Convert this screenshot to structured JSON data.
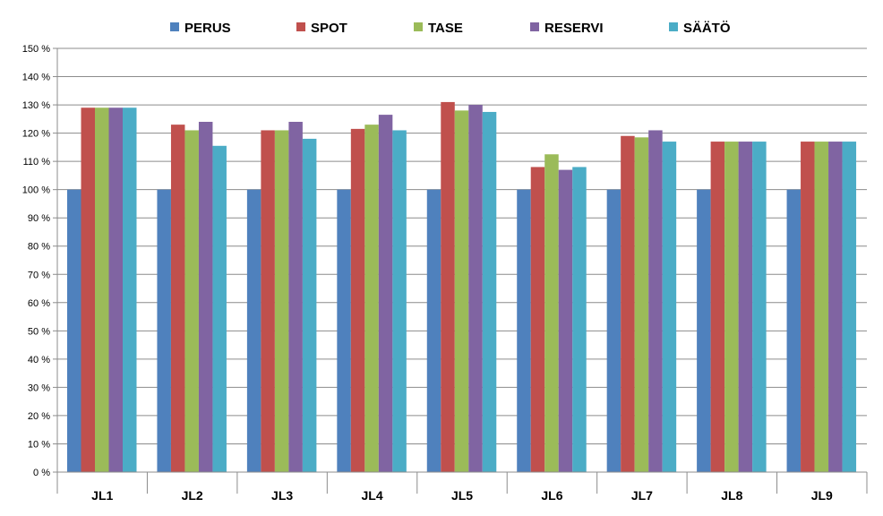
{
  "chart_data": {
    "type": "bar",
    "title": "",
    "xlabel": "",
    "ylabel": "",
    "categories": [
      "JL1",
      "JL2",
      "JL3",
      "JL4",
      "JL5",
      "JL6",
      "JL7",
      "JL8",
      "JL9"
    ],
    "series": [
      {
        "name": "PERUS",
        "color": "#4F81BD",
        "values": [
          100,
          100,
          100,
          100,
          100,
          100,
          100,
          100,
          100
        ]
      },
      {
        "name": "SPOT",
        "color": "#C0504D",
        "values": [
          129,
          123,
          121,
          121.5,
          131,
          108,
          119,
          117,
          117
        ]
      },
      {
        "name": "TASE",
        "color": "#9BBB59",
        "values": [
          129,
          121,
          121,
          123,
          128,
          112.5,
          118.5,
          117,
          117
        ]
      },
      {
        "name": "RESERVI",
        "color": "#8064A2",
        "values": [
          129,
          124,
          124,
          126.5,
          130,
          107,
          121,
          117,
          117
        ]
      },
      {
        "name": "SÄÄTÖ",
        "color": "#4BACC6",
        "values": [
          129,
          115.5,
          118,
          121,
          127.5,
          108,
          117,
          117,
          117
        ]
      }
    ],
    "ylim": [
      0,
      150
    ],
    "y_ticks": [
      {
        "v": 0,
        "label": "0 %"
      },
      {
        "v": 10,
        "label": "10 %"
      },
      {
        "v": 20,
        "label": "20 %"
      },
      {
        "v": 30,
        "label": "30 %"
      },
      {
        "v": 40,
        "label": "40 %"
      },
      {
        "v": 50,
        "label": "50 %"
      },
      {
        "v": 60,
        "label": "60 %"
      },
      {
        "v": 70,
        "label": "70 %"
      },
      {
        "v": 80,
        "label": "80 %"
      },
      {
        "v": 90,
        "label": "90 %"
      },
      {
        "v": 100,
        "label": "100 %"
      },
      {
        "v": 110,
        "label": "110 %"
      },
      {
        "v": 120,
        "label": "120 %"
      },
      {
        "v": 130,
        "label": "130 %"
      },
      {
        "v": 140,
        "label": "140 %"
      },
      {
        "v": 150,
        "label": "150 %"
      }
    ],
    "grid": true,
    "legend_position": "top"
  }
}
